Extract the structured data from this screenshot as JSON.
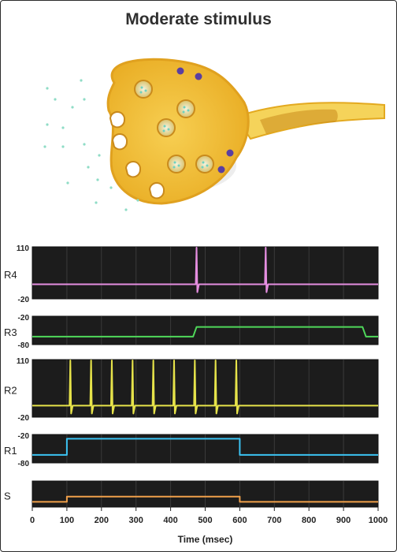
{
  "title": "Moderate stimulus",
  "x_axis": {
    "label": "Time (msec)",
    "ticks": [
      "0",
      "100",
      "200",
      "300",
      "400",
      "500",
      "600",
      "700",
      "800",
      "900",
      "1000"
    ],
    "range": [
      0,
      1000
    ]
  },
  "traces": [
    {
      "key": "R4",
      "label": "R4",
      "y_top_label": "110",
      "y_bottom_label": "-20",
      "color": "#e58ee0",
      "kind": "spikes",
      "baseline_frac": 0.72,
      "spike_times": [
        475,
        675
      ]
    },
    {
      "key": "R3",
      "label": "R3",
      "y_top_label": "-20",
      "y_bottom_label": "-80",
      "color": "#4fd85a",
      "kind": "step",
      "low_frac": 0.72,
      "high_frac": 0.38,
      "steps": [
        [
          0,
          0
        ],
        [
          465,
          0
        ],
        [
          475,
          1
        ],
        [
          955,
          1
        ],
        [
          965,
          0
        ],
        [
          1000,
          0
        ]
      ]
    },
    {
      "key": "R2",
      "label": "R2",
      "y_top_label": "110",
      "y_bottom_label": "-20",
      "color": "#e6e34a",
      "kind": "spikes",
      "baseline_frac": 0.8,
      "spike_times": [
        110,
        170,
        230,
        290,
        350,
        410,
        470,
        530,
        590
      ]
    },
    {
      "key": "R1",
      "label": "R1",
      "y_top_label": "-20",
      "y_bottom_label": "-80",
      "color": "#3bc3f2",
      "kind": "step",
      "low_frac": 0.72,
      "high_frac": 0.15,
      "steps": [
        [
          0,
          0
        ],
        [
          100,
          0
        ],
        [
          100,
          1
        ],
        [
          600,
          1
        ],
        [
          600,
          0
        ],
        [
          1000,
          0
        ]
      ]
    },
    {
      "key": "S",
      "label": "S",
      "y_top_label": "",
      "y_bottom_label": "",
      "color": "#f0a04a",
      "kind": "step",
      "low_frac": 0.8,
      "high_frac": 0.6,
      "steps": [
        [
          0,
          0
        ],
        [
          100,
          0
        ],
        [
          100,
          1
        ],
        [
          600,
          1
        ],
        [
          600,
          0
        ],
        [
          1000,
          0
        ]
      ]
    }
  ],
  "chart_data": {
    "type": "line",
    "title": "Moderate stimulus",
    "xlabel": "Time (msec)",
    "xlim": [
      0,
      1000
    ],
    "series": [
      {
        "name": "R4",
        "spike_times": [
          475,
          675
        ]
      },
      {
        "name": "R3",
        "step_on": 475,
        "step_off": 960,
        "ylim": [
          -80,
          -20
        ]
      },
      {
        "name": "R2",
        "spike_times": [
          110,
          170,
          230,
          290,
          350,
          410,
          470,
          530,
          590
        ],
        "ylim": [
          -20,
          110
        ]
      },
      {
        "name": "R1",
        "step_on": 100,
        "step_off": 600,
        "ylim": [
          -80,
          -20
        ]
      },
      {
        "name": "S",
        "step_on": 100,
        "step_off": 600
      }
    ]
  }
}
